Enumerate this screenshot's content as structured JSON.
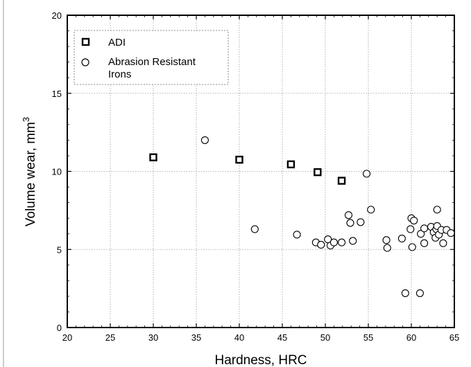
{
  "chart_data": {
    "type": "scatter",
    "xlabel": "Hardness, HRC",
    "ylabel": "Volume wear, mm",
    "ylabel_superscript": "3",
    "xlim": [
      20,
      65
    ],
    "ylim": [
      0,
      20
    ],
    "xticks": [
      "20",
      "25",
      "30",
      "35",
      "40",
      "45",
      "50",
      "55",
      "60",
      "65"
    ],
    "yticks": [
      "0",
      "5",
      "10",
      "15",
      "20"
    ],
    "grid": true,
    "legend_position": "top-left",
    "series": [
      {
        "name": "ADI",
        "marker": "square",
        "points": [
          {
            "x": 30.0,
            "y": 10.9
          },
          {
            "x": 40.0,
            "y": 10.75
          },
          {
            "x": 46.0,
            "y": 10.45
          },
          {
            "x": 49.1,
            "y": 9.95
          },
          {
            "x": 51.9,
            "y": 9.4
          }
        ]
      },
      {
        "name": "Abrasion Resistant Irons",
        "marker": "circle",
        "points": [
          {
            "x": 36.0,
            "y": 12.0
          },
          {
            "x": 41.8,
            "y": 6.3
          },
          {
            "x": 46.7,
            "y": 5.95
          },
          {
            "x": 48.9,
            "y": 5.45
          },
          {
            "x": 49.5,
            "y": 5.3
          },
          {
            "x": 50.3,
            "y": 5.65
          },
          {
            "x": 50.6,
            "y": 5.25
          },
          {
            "x": 51.0,
            "y": 5.45
          },
          {
            "x": 51.9,
            "y": 5.45
          },
          {
            "x": 52.7,
            "y": 7.2
          },
          {
            "x": 52.9,
            "y": 6.7
          },
          {
            "x": 53.2,
            "y": 5.55
          },
          {
            "x": 54.1,
            "y": 6.75
          },
          {
            "x": 54.8,
            "y": 9.85
          },
          {
            "x": 55.3,
            "y": 7.55
          },
          {
            "x": 57.1,
            "y": 5.6
          },
          {
            "x": 57.2,
            "y": 5.1
          },
          {
            "x": 58.9,
            "y": 5.7
          },
          {
            "x": 59.3,
            "y": 2.2
          },
          {
            "x": 59.9,
            "y": 6.3
          },
          {
            "x": 60.0,
            "y": 7.0
          },
          {
            "x": 60.1,
            "y": 5.15
          },
          {
            "x": 60.3,
            "y": 6.85
          },
          {
            "x": 61.0,
            "y": 2.2
          },
          {
            "x": 61.1,
            "y": 6.0
          },
          {
            "x": 61.5,
            "y": 6.35
          },
          {
            "x": 61.5,
            "y": 5.4
          },
          {
            "x": 62.3,
            "y": 6.45
          },
          {
            "x": 62.6,
            "y": 6.1
          },
          {
            "x": 62.8,
            "y": 5.75
          },
          {
            "x": 62.9,
            "y": 6.3
          },
          {
            "x": 63.0,
            "y": 6.5
          },
          {
            "x": 63.0,
            "y": 7.55
          },
          {
            "x": 63.2,
            "y": 5.95
          },
          {
            "x": 63.5,
            "y": 6.25
          },
          {
            "x": 63.7,
            "y": 5.4
          },
          {
            "x": 64.1,
            "y": 6.25
          },
          {
            "x": 64.6,
            "y": 6.05
          }
        ]
      }
    ]
  }
}
